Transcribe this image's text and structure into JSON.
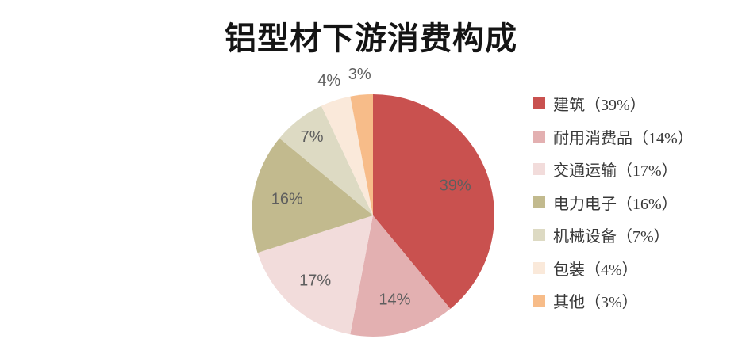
{
  "title": "铝型材下游消费构成",
  "chart_data": {
    "type": "pie",
    "title": "铝型材下游消费构成",
    "categories": [
      "建筑",
      "耐用消费品",
      "交通运输",
      "电力电子",
      "机械设备",
      "包装",
      "其他"
    ],
    "values": [
      39,
      14,
      17,
      16,
      7,
      4,
      3
    ],
    "unit": "%",
    "slice_labels": [
      "39%",
      "14%",
      "17%",
      "16%",
      "7%",
      "4%",
      "3%"
    ],
    "legend_labels": [
      "建筑（39%）",
      "耐用消费品（14%）",
      "交通运输（17%）",
      "电力电子（16%）",
      "机械设备（7%）",
      "包装（4%）",
      "其他（3%）"
    ],
    "colors": [
      "#C9514F",
      "#E3B0B1",
      "#F2DCDB",
      "#C2BA8E",
      "#DDDAC3",
      "#FAE9DA",
      "#F7BC89"
    ],
    "label_color": "#5e5e5e",
    "title_color": "#141414",
    "legend_position": "right",
    "start_angle_deg": 0,
    "direction": "clockwise",
    "grid": false
  }
}
